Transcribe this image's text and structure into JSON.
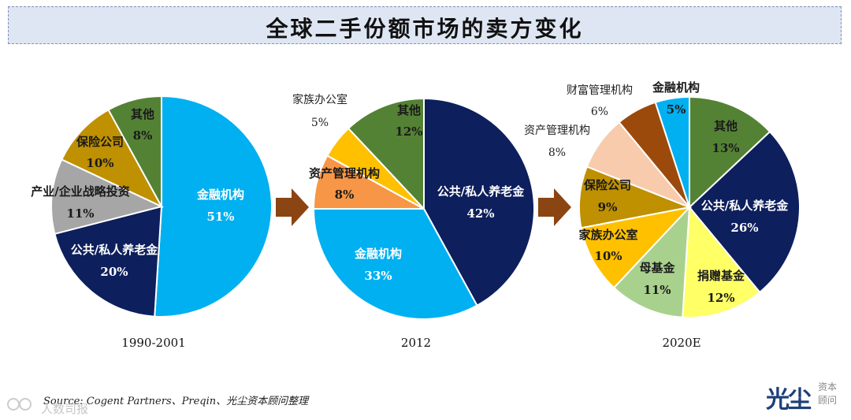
{
  "title": "全球二手份额市场的卖方变化",
  "source": "Source: Cogent Partners、Preqin、光尘资本顾问整理",
  "watermark": "人数司报",
  "logo": {
    "main": "光尘",
    "sub1": "资本",
    "sub2": "顾问"
  },
  "arrow_color": "#8b4513",
  "chart_data": [
    {
      "type": "pie",
      "title": "1990-2001",
      "slices": [
        {
          "label": "金融机构",
          "value": 51,
          "display": "51%",
          "color": "#00b0f0"
        },
        {
          "label": "公共/私人养老金",
          "value": 20,
          "display": "20%",
          "color": "#0d1f5c"
        },
        {
          "label": "产业/企业战略投资",
          "value": 11,
          "display": "11%",
          "color": "#a6a6a6"
        },
        {
          "label": "保险公司",
          "value": 10,
          "display": "10%",
          "color": "#bf9000"
        },
        {
          "label": "其他",
          "value": 8,
          "display": "8%",
          "color": "#548235"
        }
      ]
    },
    {
      "type": "pie",
      "title": "2012",
      "slices": [
        {
          "label": "公共/私人养老金",
          "value": 42,
          "display": "42%",
          "color": "#0d1f5c"
        },
        {
          "label": "金融机构",
          "value": 33,
          "display": "33%",
          "color": "#00b0f0"
        },
        {
          "label": "资产管理机构",
          "value": 8,
          "display": "8%",
          "color": "#f79646"
        },
        {
          "label": "家族办公室",
          "value": 5,
          "display": "5%",
          "color": "#ffc000"
        },
        {
          "label": "其他",
          "value": 12,
          "display": "12%",
          "color": "#548235"
        }
      ]
    },
    {
      "type": "pie",
      "title": "2020E",
      "slices": [
        {
          "label": "其他",
          "value": 13,
          "display": "13%",
          "color": "#548235"
        },
        {
          "label": "公共/私人养老金",
          "value": 26,
          "display": "26%",
          "color": "#0d1f5c"
        },
        {
          "label": "捐赠基金",
          "value": 12,
          "display": "12%",
          "color": "#ffff66"
        },
        {
          "label": "母基金",
          "value": 11,
          "display": "11%",
          "color": "#a9d18e"
        },
        {
          "label": "家族办公室",
          "value": 10,
          "display": "10%",
          "color": "#ffc000"
        },
        {
          "label": "保险公司",
          "value": 9,
          "display": "9%",
          "color": "#bf9000"
        },
        {
          "label": "资产管理机构",
          "value": 8,
          "display": "8%",
          "color": "#f8cbad"
        },
        {
          "label": "财富管理机构",
          "value": 6,
          "display": "6%",
          "color": "#9c4a0c"
        },
        {
          "label": "金融机构",
          "value": 5,
          "display": "5%",
          "color": "#00b0f0"
        }
      ]
    }
  ]
}
